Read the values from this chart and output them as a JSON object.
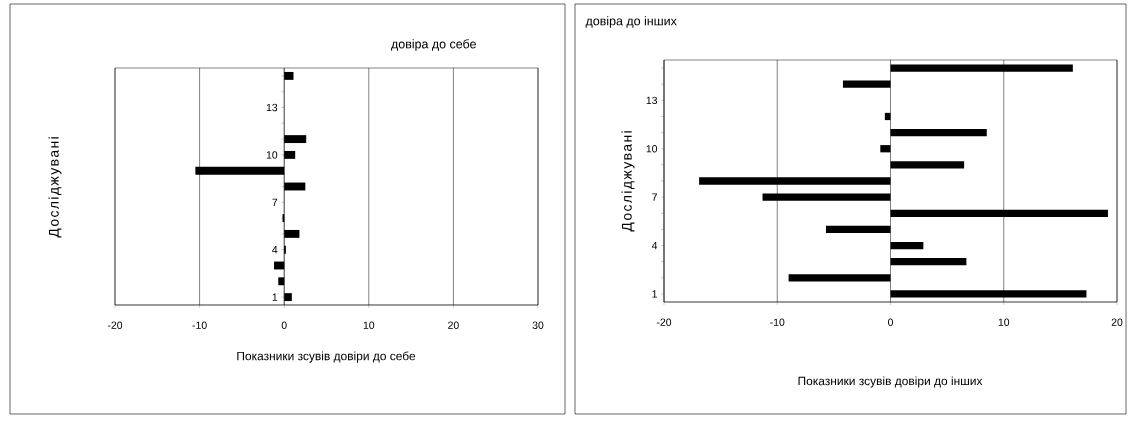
{
  "chart_data": [
    {
      "type": "bar",
      "orientation": "horizontal",
      "title": "довіра до себе",
      "xlabel": "Показники зсувів довіри до себе",
      "ylabel": "Досліджувані",
      "categories": [
        null,
        null,
        "13",
        null,
        null,
        "10",
        null,
        null,
        "7",
        null,
        null,
        "4",
        null,
        null,
        "1"
      ],
      "values": [
        1.1,
        0,
        0,
        0,
        2.6,
        1.3,
        -10.5,
        2.5,
        0,
        -0.2,
        1.8,
        0.2,
        -1.2,
        -0.7,
        0.9
      ],
      "color": "#000000",
      "xlim": [
        -20,
        30
      ],
      "xticks": [
        -20,
        -10,
        0,
        10,
        20,
        30
      ],
      "grid": "x"
    },
    {
      "type": "bar",
      "orientation": "horizontal",
      "title": "довіра до інших",
      "xlabel": "Показники зсувів довіри до інших",
      "ylabel": "Досліджувані",
      "categories": [
        null,
        null,
        "13",
        null,
        null,
        "10",
        null,
        null,
        "7",
        null,
        null,
        "4",
        null,
        null,
        "1"
      ],
      "values": [
        16.1,
        -4.2,
        0,
        -0.5,
        8.5,
        -0.9,
        6.5,
        -16.9,
        -11.3,
        19.2,
        -5.7,
        2.9,
        6.7,
        -9.0,
        17.3
      ],
      "color": "#000000",
      "xlim": [
        -20,
        20
      ],
      "xticks": [
        -20,
        -10,
        0,
        10,
        20
      ],
      "grid": "x"
    }
  ]
}
